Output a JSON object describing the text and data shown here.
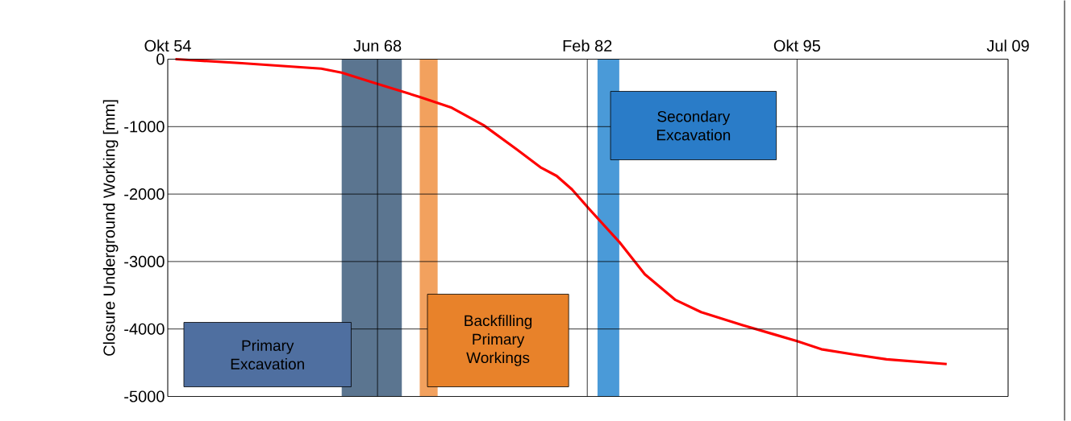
{
  "chart_data": {
    "type": "line",
    "ylabel": "Closure Underground  Working [mm]",
    "x": [
      "1955-04",
      "1959-08",
      "1964-10",
      "1966-02",
      "1968-05",
      "1971-03",
      "1973-04",
      "1975-05",
      "1977-07",
      "1979-02",
      "1980-02",
      "1981-02",
      "1982-03",
      "1984-03",
      "1985-11",
      "1987-11",
      "1989-07",
      "1992-03",
      "1994-04",
      "1995-10",
      "1997-05",
      "1999-07",
      "2001-08",
      "2005-07"
    ],
    "series": [
      {
        "color": "#ff0000",
        "values": [
          0,
          -60,
          -140,
          -200,
          -360,
          -560,
          -720,
          -980,
          -1340,
          -1610,
          -1730,
          -1930,
          -2210,
          -2710,
          -3190,
          -3570,
          -3750,
          -3940,
          -4080,
          -4180,
          -4300,
          -4380,
          -4450,
          -4520
        ]
      }
    ],
    "xlim": [
      "1954-10",
      "2009-07"
    ],
    "ylim": [
      -5000,
      0
    ],
    "xticks": [
      {
        "value": "1954-10",
        "label": "Okt 54"
      },
      {
        "value": "1968-06",
        "label": "Jun 68"
      },
      {
        "value": "1982-02",
        "label": "Feb 82"
      },
      {
        "value": "1995-10",
        "label": "Okt 95"
      },
      {
        "value": "2009-07",
        "label": "Jul 09"
      }
    ],
    "yticks": [
      0,
      -1000,
      -2000,
      -3000,
      -4000,
      -5000
    ],
    "grid": true,
    "marker": "none",
    "line_style": "solid",
    "bands": [
      {
        "axis": "x",
        "from": "1966-02",
        "to": "1970-01",
        "label": "Primary Excavation",
        "color": "#5b7590"
      },
      {
        "axis": "x",
        "from": "1971-03",
        "to": "1972-05",
        "label": "Backfilling Primary Workings",
        "color": "#f2a15e"
      },
      {
        "axis": "x",
        "from": "1982-10",
        "to": "1984-03",
        "label": "Secondary Excavation",
        "color": "#4a9ad8"
      }
    ]
  }
}
